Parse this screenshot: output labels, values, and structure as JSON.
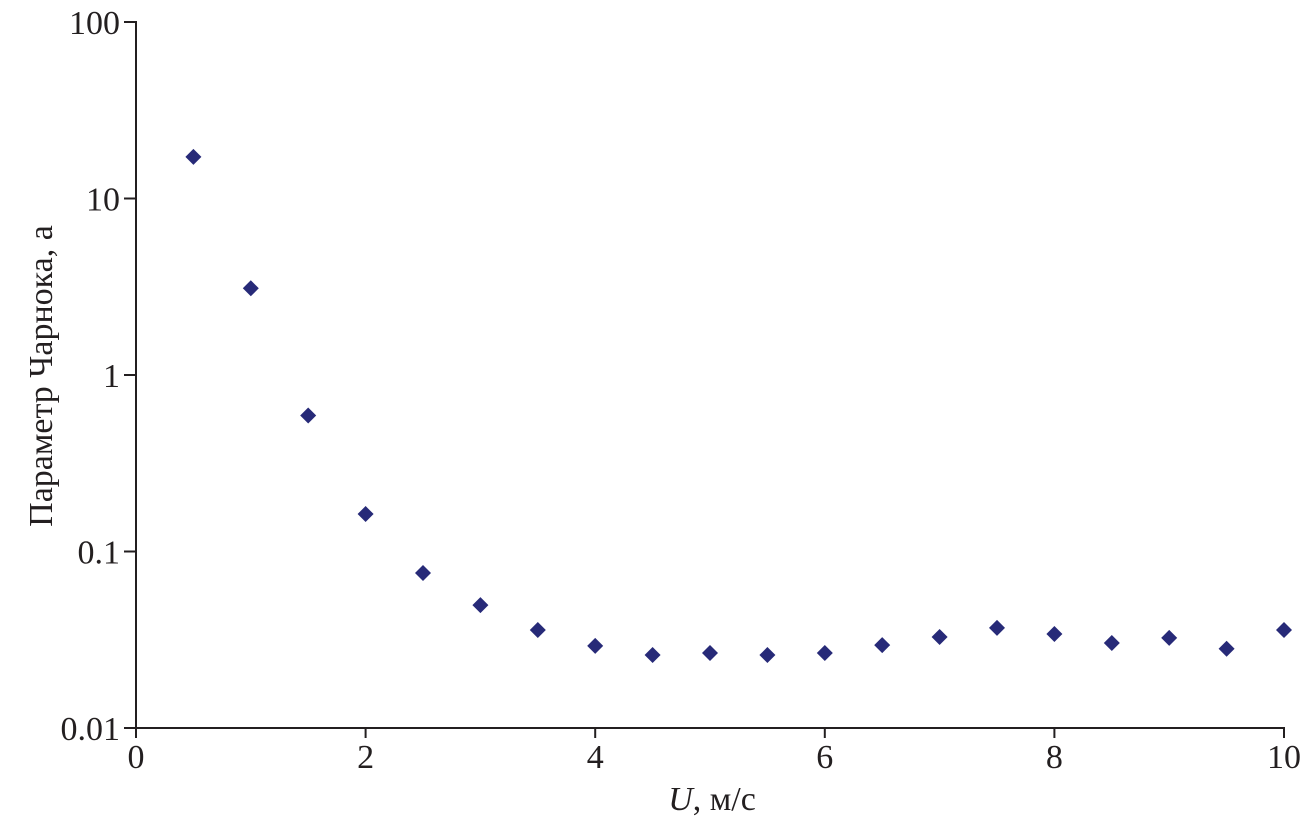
{
  "chart_data": {
    "type": "scatter",
    "y_label": "Параметр Чарнока, a",
    "x_label_var": "U",
    "x_label_unit": ", м/с",
    "yscale": "log",
    "color": "#272a78",
    "x": [
      0.5,
      1,
      1.5,
      2,
      2.5,
      3,
      3.5,
      4,
      4.5,
      5,
      5.5,
      6,
      6.5,
      7,
      7.5,
      8,
      8.5,
      9,
      9.5,
      10
    ],
    "values": [
      17.2,
      3.1,
      0.59,
      0.163,
      0.0755,
      0.0497,
      0.0359,
      0.0292,
      0.0259,
      0.0266,
      0.0259,
      0.0266,
      0.0295,
      0.0328,
      0.0369,
      0.0341,
      0.0303,
      0.0324,
      0.0281,
      0.0359
    ],
    "xlim": [
      0,
      10
    ],
    "xticks": [
      0,
      2,
      4,
      6,
      8,
      10
    ],
    "ylim": [
      0.01,
      100
    ],
    "yticks": [
      0.01,
      0.1,
      1,
      10,
      100
    ]
  }
}
